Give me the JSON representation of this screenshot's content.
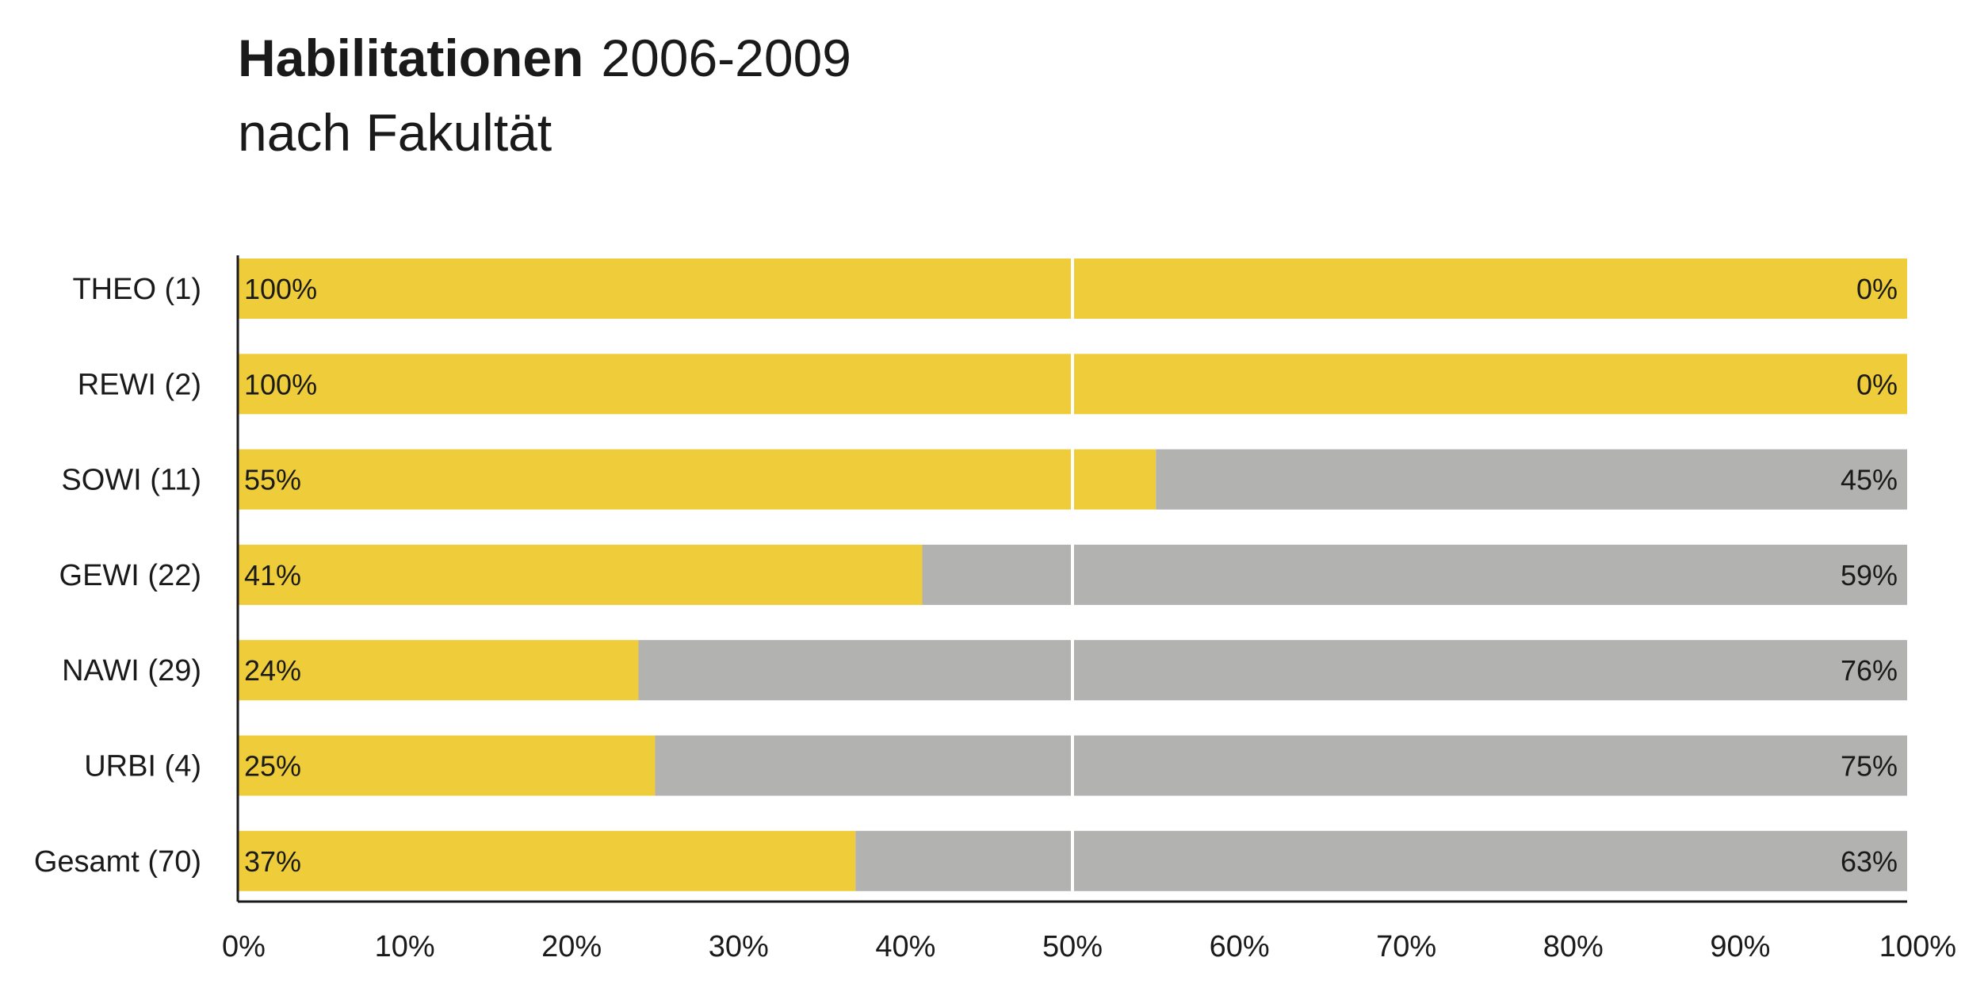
{
  "chart_data": {
    "type": "bar",
    "orientation": "horizontal",
    "stacked": true,
    "title_bold": "Habilitationen",
    "title_rest": "2006-2009",
    "subtitle": "nach Fakultät",
    "categories": [
      "THEO (1)",
      "REWI (2)",
      "SOWI (11)",
      "GEWI (22)",
      "NAWI (29)",
      "URBI (4)",
      "Gesamt (70)"
    ],
    "series": [
      {
        "values": [
          100,
          100,
          55,
          41,
          24,
          25,
          37
        ],
        "labels": [
          "100%",
          "100%",
          "55%",
          "41%",
          "24%",
          "25%",
          "37%"
        ],
        "color": "#efcd3a"
      },
      {
        "values": [
          0,
          0,
          45,
          59,
          76,
          75,
          63
        ],
        "labels": [
          "0%",
          "0%",
          "45%",
          "59%",
          "76%",
          "75%",
          "63%"
        ],
        "color": "#b2b2b1"
      }
    ],
    "xlim": [
      0,
      100
    ],
    "x_ticks": [
      "0%",
      "10%",
      "20%",
      "30%",
      "40%",
      "50%",
      "60%",
      "70%",
      "80%",
      "90%",
      "100%"
    ],
    "x_tick_values": [
      0,
      10,
      20,
      30,
      40,
      50,
      60,
      70,
      80,
      90,
      100
    ],
    "reference_line": 50,
    "legend": "none",
    "grid": false
  }
}
